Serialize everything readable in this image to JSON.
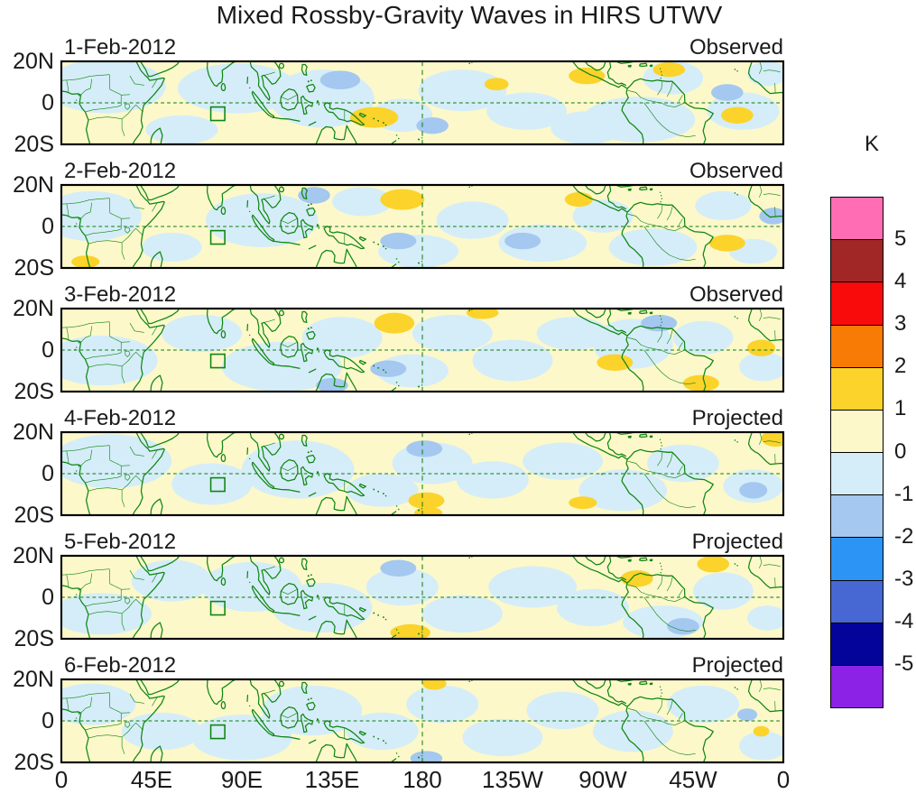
{
  "chart_data": {
    "type": "heatmap",
    "title": "Mixed Rossby-Gravity Waves in HIRS UTWV",
    "unit": "K",
    "x_ticks": [
      {
        "label": "0",
        "lon": 0
      },
      {
        "label": "45E",
        "lon": 45
      },
      {
        "label": "90E",
        "lon": 90
      },
      {
        "label": "135E",
        "lon": 135
      },
      {
        "label": "180",
        "lon": 180
      },
      {
        "label": "135W",
        "lon": 225
      },
      {
        "label": "90W",
        "lon": 270
      },
      {
        "label": "45W",
        "lon": 315
      },
      {
        "label": "0",
        "lon": 360
      }
    ],
    "y_ticks": [
      "20N",
      "0",
      "20S"
    ],
    "lon_range": [
      0,
      360
    ],
    "lat_range": [
      -20,
      20
    ],
    "grid": "dashed equator and dateline only",
    "legend_position": "right",
    "colorbar": {
      "unit": "K",
      "tick_labels": [
        "5",
        "4",
        "3",
        "2",
        "1",
        "0",
        "-1",
        "-2",
        "-3",
        "-4",
        "-5"
      ],
      "colors": [
        "#FF6EB4",
        "#A12626",
        "#F90B0B",
        "#F87B06",
        "#FBD32A",
        "#FCF8CA",
        "#D5EDF8",
        "#A4C8F0",
        "#2B94F5",
        "#4767D2",
        "#04049A",
        "#8B22E5"
      ]
    },
    "map": {
      "line_color": "#0E8611",
      "dash_color": "#0C7A0C",
      "dateline_lon": 180,
      "equator_lat": 0,
      "roi_box": {
        "lon_min": 74.5,
        "lon_max": 81.5,
        "lat_min": -8.5,
        "lat_max": -2
      }
    },
    "panels": [
      {
        "date": "1-Feb-2012",
        "status": "Observed",
        "blobs": [
          [
            22,
            8,
            30,
            13,
            -0.5
          ],
          [
            60,
            -13,
            18,
            7,
            -0.5
          ],
          [
            88,
            7,
            30,
            12,
            -0.5
          ],
          [
            130,
            2,
            26,
            14,
            -0.5
          ],
          [
            170,
            -6,
            15,
            8,
            -0.5
          ],
          [
            200,
            6,
            22,
            10,
            -0.5
          ],
          [
            232,
            -4,
            20,
            9,
            -0.5
          ],
          [
            262,
            -12,
            18,
            8,
            -0.5
          ],
          [
            288,
            -8,
            28,
            11,
            -0.5
          ],
          [
            305,
            12,
            15,
            8,
            -0.5
          ],
          [
            340,
            -4,
            18,
            9,
            -0.5
          ],
          [
            352,
            14,
            10,
            6,
            -0.5
          ],
          [
            139,
            11,
            10,
            4.5,
            -1.5
          ],
          [
            185,
            -11,
            8,
            4,
            -1.5
          ],
          [
            332,
            5,
            8,
            4,
            -1.5
          ],
          [
            156,
            -7,
            12,
            5,
            1.5
          ],
          [
            217,
            9,
            6,
            3,
            1.5
          ],
          [
            262,
            13,
            9,
            4,
            1.5
          ],
          [
            303,
            16,
            8,
            3.5,
            1.5
          ],
          [
            337,
            -6,
            8,
            4,
            1.5
          ]
        ]
      },
      {
        "date": "2-Feb-2012",
        "status": "Observed",
        "blobs": [
          [
            15,
            5,
            25,
            12,
            -0.5
          ],
          [
            55,
            -10,
            15,
            7,
            -0.5
          ],
          [
            100,
            3,
            28,
            13,
            -0.5
          ],
          [
            150,
            12,
            15,
            7,
            -0.5
          ],
          [
            178,
            -12,
            20,
            8,
            -0.5
          ],
          [
            205,
            3,
            18,
            9,
            -0.5
          ],
          [
            240,
            -8,
            22,
            9,
            -0.5
          ],
          [
            270,
            5,
            15,
            8,
            -0.5
          ],
          [
            295,
            -10,
            22,
            9,
            -0.5
          ],
          [
            330,
            10,
            14,
            7,
            -0.5
          ],
          [
            345,
            -12,
            12,
            6,
            -0.5
          ],
          [
            126,
            15,
            8,
            4,
            -1.5
          ],
          [
            168,
            -7,
            9,
            4,
            -1.5
          ],
          [
            230,
            -7,
            9,
            4,
            -1.5
          ],
          [
            355,
            5,
            7,
            4,
            -1.5
          ],
          [
            170,
            13,
            11,
            5,
            1.5
          ],
          [
            258,
            13,
            7,
            3.5,
            1.5
          ],
          [
            332,
            -8,
            9,
            4,
            1.5
          ],
          [
            12,
            -17,
            7,
            3,
            1.5
          ]
        ]
      },
      {
        "date": "3-Feb-2012",
        "status": "Observed",
        "blobs": [
          [
            20,
            -5,
            28,
            12,
            -0.5
          ],
          [
            70,
            8,
            20,
            9,
            -0.5
          ],
          [
            110,
            -8,
            30,
            12,
            -0.5
          ],
          [
            140,
            6,
            20,
            10,
            -0.5
          ],
          [
            175,
            -10,
            18,
            8,
            -0.5
          ],
          [
            195,
            8,
            20,
            9,
            -0.5
          ],
          [
            225,
            -5,
            20,
            10,
            -0.5
          ],
          [
            255,
            8,
            18,
            8,
            -0.5
          ],
          [
            285,
            3,
            20,
            12,
            -0.5
          ],
          [
            320,
            6,
            15,
            8,
            -0.5
          ],
          [
            350,
            -8,
            12,
            7,
            -0.5
          ],
          [
            163,
            -9,
            9,
            4,
            -1.5
          ],
          [
            298,
            13,
            9,
            4,
            -1.5
          ],
          [
            135,
            -17,
            8,
            3.5,
            -1.5
          ],
          [
            166,
            13,
            10,
            5,
            1.5
          ],
          [
            276,
            -6,
            9,
            4,
            1.5
          ],
          [
            319,
            -16,
            9,
            4,
            1.5
          ],
          [
            349,
            1,
            7,
            4,
            1.5
          ],
          [
            210,
            18,
            8,
            3,
            1.5
          ]
        ]
      },
      {
        "date": "4-Feb-2012",
        "status": "Projected",
        "blobs": [
          [
            25,
            6,
            30,
            13,
            -0.5
          ],
          [
            75,
            -5,
            20,
            10,
            -0.5
          ],
          [
            118,
            2,
            28,
            14,
            -0.5
          ],
          [
            160,
            -8,
            18,
            8,
            -0.5
          ],
          [
            185,
            5,
            20,
            10,
            -0.5
          ],
          [
            215,
            -3,
            18,
            9,
            -0.5
          ],
          [
            250,
            6,
            20,
            9,
            -0.5
          ],
          [
            280,
            -8,
            22,
            10,
            -0.5
          ],
          [
            310,
            5,
            18,
            9,
            -0.5
          ],
          [
            345,
            -6,
            15,
            8,
            -0.5
          ],
          [
            181,
            12,
            9,
            4,
            -1.5
          ],
          [
            345,
            -8,
            7,
            4,
            -1.5
          ],
          [
            182,
            -13,
            9,
            4,
            1.5
          ],
          [
            183,
            -19,
            7,
            3,
            1.5
          ],
          [
            356,
            17,
            7,
            4,
            1.5
          ],
          [
            260,
            -14,
            7,
            3,
            1.5
          ]
        ]
      },
      {
        "date": "5-Feb-2012",
        "status": "Projected",
        "blobs": [
          [
            20,
            -8,
            25,
            10,
            -0.5
          ],
          [
            55,
            8,
            20,
            10,
            -0.5
          ],
          [
            95,
            5,
            25,
            12,
            -0.5
          ],
          [
            130,
            -5,
            25,
            12,
            -0.5
          ],
          [
            170,
            5,
            18,
            9,
            -0.5
          ],
          [
            200,
            -8,
            20,
            9,
            -0.5
          ],
          [
            235,
            5,
            22,
            10,
            -0.5
          ],
          [
            265,
            -5,
            18,
            9,
            -0.5
          ],
          [
            300,
            -12,
            20,
            8,
            -0.5
          ],
          [
            330,
            3,
            15,
            9,
            -0.5
          ],
          [
            352,
            -10,
            10,
            6,
            -0.5
          ],
          [
            168,
            14,
            9,
            4,
            -1.5
          ],
          [
            310,
            -14,
            8,
            4,
            -1.5
          ],
          [
            174,
            -17,
            10,
            4,
            1.5
          ],
          [
            325,
            16,
            8,
            4,
            1.5
          ],
          [
            287,
            9,
            8,
            4,
            1.5
          ]
        ]
      },
      {
        "date": "6-Feb-2012",
        "status": "Projected",
        "blobs": [
          [
            15,
            8,
            22,
            10,
            -0.5
          ],
          [
            50,
            -5,
            20,
            9,
            -0.5
          ],
          [
            90,
            -8,
            25,
            11,
            -0.5
          ],
          [
            125,
            5,
            25,
            12,
            -0.5
          ],
          [
            160,
            -5,
            18,
            9,
            -0.5
          ],
          [
            190,
            8,
            18,
            9,
            -0.5
          ],
          [
            220,
            -8,
            20,
            9,
            -0.5
          ],
          [
            250,
            5,
            18,
            9,
            -0.5
          ],
          [
            285,
            -5,
            20,
            10,
            -0.5
          ],
          [
            320,
            8,
            18,
            9,
            -0.5
          ],
          [
            350,
            -12,
            12,
            7,
            -0.5
          ],
          [
            182,
            -18,
            8,
            3.5,
            -1.5
          ],
          [
            342,
            3,
            5,
            3,
            -1.5
          ],
          [
            186,
            18,
            6,
            3,
            1.5
          ],
          [
            349,
            -5,
            4,
            2.5,
            1.5
          ]
        ]
      }
    ]
  }
}
